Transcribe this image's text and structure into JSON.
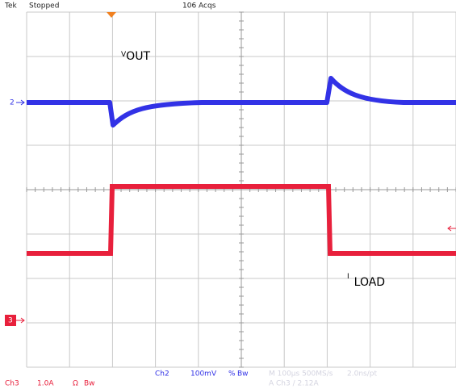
{
  "header": {
    "brand": "Tek",
    "status": "Stopped",
    "acquisitions": "106 Acqs"
  },
  "labels": {
    "vout": {
      "main": "V",
      "sub": "OUT"
    },
    "iload": {
      "main": "I",
      "sub": "LOAD"
    }
  },
  "markers": {
    "ch2": "2",
    "ch3": "3"
  },
  "footer": {
    "ch2": "Ch2",
    "ch2_scale": "100mV",
    "ch2_coupling": "%",
    "ch2_bw": "Bw",
    "timebase": "M 100µs 500MS/s",
    "resolution": "2.0ns/pt",
    "ch3": "Ch3",
    "ch3_scale": "1.0A",
    "ch3_coupling": "Ω",
    "ch3_bw": "Bw",
    "trigger": "A  Ch3  ∕  2.12A"
  }
}
